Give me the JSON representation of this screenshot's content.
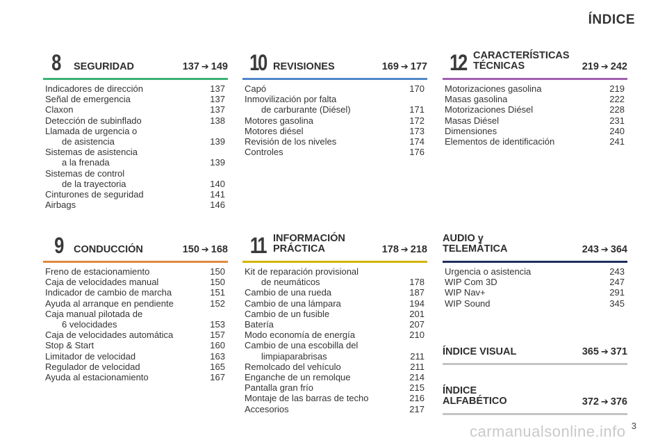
{
  "title": "ÍNDICE",
  "page_number": "3",
  "watermark": "carmanualsonline.info",
  "arrow": "➔",
  "colors": {
    "green": "#3bb273",
    "blue": "#4f87c8",
    "purple": "#a25fb0",
    "orange": "#e08a3c",
    "gold": "#d4b400",
    "navy": "#1d2d5c",
    "gray": "#c4c4c4"
  },
  "sections": {
    "s8": {
      "number": "8",
      "title": "SEGURIDAD",
      "from": "137",
      "to": "149",
      "entries": [
        {
          "name": "Indicadores de dirección",
          "page": "137"
        },
        {
          "name": "Señal de emergencia",
          "page": "137"
        },
        {
          "name": "Claxon",
          "page": "137"
        },
        {
          "name": "Detección de subinflado",
          "page": "138"
        },
        {
          "name": "Llamada de urgencia o",
          "cont": "de asistencia",
          "page": "139"
        },
        {
          "name": "Sistemas de asistencia",
          "cont": "a la frenada",
          "page": "139"
        },
        {
          "name": "Sistemas de control",
          "cont": "de la trayectoria",
          "page": "140"
        },
        {
          "name": "Cinturones de seguridad",
          "page": "141"
        },
        {
          "name": "Airbags",
          "page": "146"
        }
      ]
    },
    "s10": {
      "number": "10",
      "title": "REVISIONES",
      "from": "169",
      "to": "177",
      "entries": [
        {
          "name": "Capó",
          "page": "170"
        },
        {
          "name": "Inmovilización por falta",
          "cont": "de carburante (Diésel)",
          "page": "171"
        },
        {
          "name": "Motores gasolina",
          "page": "172"
        },
        {
          "name": "Motores diésel",
          "page": "173"
        },
        {
          "name": "Revisión de los niveles",
          "page": "174"
        },
        {
          "name": "Controles",
          "page": "176"
        }
      ]
    },
    "s12": {
      "number": "12",
      "title_line1": "CARACTERÍSTICAS",
      "title_line2": "TÉCNICAS",
      "from": "219",
      "to": "242",
      "entries": [
        {
          "name": "Motorizaciones gasolina",
          "page": "219"
        },
        {
          "name": "Masas gasolina",
          "page": "222"
        },
        {
          "name": "Motorizaciones Diésel",
          "page": "228"
        },
        {
          "name": "Masas Diésel",
          "page": "231"
        },
        {
          "name": "Dimensiones",
          "page": "240"
        },
        {
          "name": "Elementos de identificación",
          "page": "241"
        }
      ]
    },
    "s9": {
      "number": "9",
      "title": "CONDUCCIÓN",
      "from": "150",
      "to": "168",
      "entries": [
        {
          "name": "Freno de estacionamiento",
          "page": "150"
        },
        {
          "name": "Caja de velocidades manual",
          "page": "150"
        },
        {
          "name": "Indicador de cambio de marcha",
          "page": "151"
        },
        {
          "name": "Ayuda al arranque en pendiente",
          "page": "152"
        },
        {
          "name": "Caja manual pilotada de",
          "cont": "6 velocidades",
          "page": "153"
        },
        {
          "name": "Caja de velocidades automática",
          "page": "157"
        },
        {
          "name": "Stop & Start",
          "page": "160"
        },
        {
          "name": "Limitador de velocidad",
          "page": "163"
        },
        {
          "name": "Regulador de velocidad",
          "page": "165"
        },
        {
          "name": "Ayuda al estacionamiento",
          "page": "167"
        }
      ]
    },
    "s11": {
      "number": "11",
      "title_line1": "INFORMACIÓN",
      "title_line2": "PRÁCTICA",
      "from": "178",
      "to": "218",
      "entries": [
        {
          "name": "Kit de reparación provisional",
          "cont": "de neumáticos",
          "page": "178"
        },
        {
          "name": "Cambio de una rueda",
          "page": "187"
        },
        {
          "name": "Cambio de una lámpara",
          "page": "194"
        },
        {
          "name": "Cambio de un fusible",
          "page": "201"
        },
        {
          "name": "Batería",
          "page": "207"
        },
        {
          "name": "Modo economía de energía",
          "page": "210"
        },
        {
          "name": "Cambio de una escobilla del",
          "cont": "limpiaparabrisas",
          "page": "211"
        },
        {
          "name": "Remolcado del vehículo",
          "page": "211"
        },
        {
          "name": "Enganche de un remolque",
          "page": "214"
        },
        {
          "name": "Pantalla gran frío",
          "page": "215"
        },
        {
          "name": "Montaje de las barras de techo",
          "page": "216"
        },
        {
          "name": "Accesorios",
          "page": "217"
        }
      ]
    },
    "audio": {
      "title_line1": "AUDIO y",
      "title_line2": "TELEMÁTICA",
      "from": "243",
      "to": "364",
      "entries": [
        {
          "name": "Urgencia o asistencia",
          "page": "243"
        },
        {
          "name": "WIP Com 3D",
          "page": "247"
        },
        {
          "name": "WIP Nav+",
          "page": "291"
        },
        {
          "name": "WIP Sound",
          "page": "345"
        }
      ]
    },
    "visual": {
      "title": "ÍNDICE VISUAL",
      "from": "365",
      "to": "371"
    },
    "alpha": {
      "title_line1": "ÍNDICE",
      "title_line2": "ALFABÉTICO",
      "from": "372",
      "to": "376"
    }
  }
}
